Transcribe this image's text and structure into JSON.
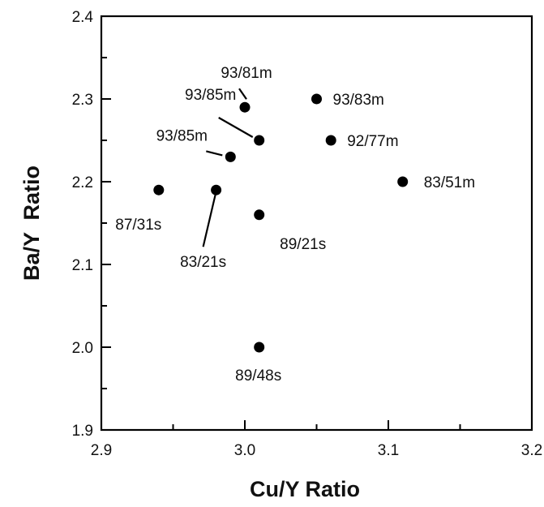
{
  "chart_data": {
    "type": "scatter",
    "title": "",
    "xlabel": "Cu/Y Ratio",
    "ylabel": "Ba/Y  Ratio",
    "xlim": [
      2.9,
      3.2
    ],
    "ylim": [
      1.9,
      2.4
    ],
    "xticks": [
      "2.9",
      "3.0",
      "3.1",
      "3.2"
    ],
    "yticks": [
      "1.9",
      "2.0",
      "2.1",
      "2.2",
      "2.3",
      "2.4"
    ],
    "grid": false,
    "marker_color": "#000000",
    "points": [
      {
        "x": 3.0,
        "y": 2.29,
        "label": "93/81m"
      },
      {
        "x": 3.05,
        "y": 2.3,
        "label": "93/83m"
      },
      {
        "x": 3.01,
        "y": 2.25,
        "label": "93/85m"
      },
      {
        "x": 3.06,
        "y": 2.25,
        "label": "92/77m"
      },
      {
        "x": 2.99,
        "y": 2.23,
        "label": "93/85m"
      },
      {
        "x": 3.11,
        "y": 2.2,
        "label": "83/51m"
      },
      {
        "x": 2.94,
        "y": 2.19,
        "label": "87/31s"
      },
      {
        "x": 2.98,
        "y": 2.19,
        "label": "83/21s"
      },
      {
        "x": 3.01,
        "y": 2.16,
        "label": "89/21s"
      },
      {
        "x": 3.01,
        "y": 2.0,
        "label": "89/48s"
      }
    ]
  }
}
